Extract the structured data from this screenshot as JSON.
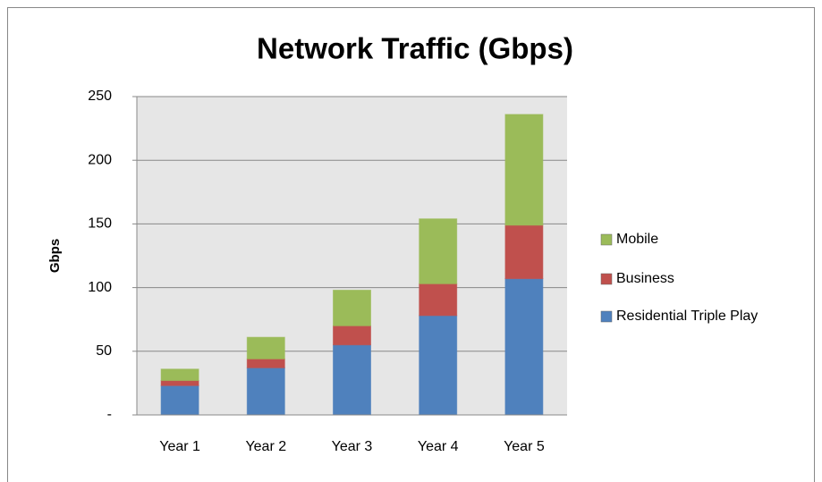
{
  "chart_data": {
    "type": "stacked_bar",
    "title": "Network Traffic (Gbps)",
    "y_label": "Gbps",
    "categories": [
      "Year 1",
      "Year 2",
      "Year 3",
      "Year 4",
      "Year 5"
    ],
    "series": [
      {
        "name": "Residential Triple Play",
        "color": "#4f81bd",
        "values": [
          23,
          37,
          55,
          78,
          107
        ]
      },
      {
        "name": "Business",
        "color": "#c0504d",
        "values": [
          4,
          7,
          15,
          25,
          42
        ]
      },
      {
        "name": "Mobile",
        "color": "#9bbb59",
        "values": [
          9,
          17,
          28,
          51,
          87
        ]
      }
    ],
    "ylim": [
      0,
      250
    ],
    "yticks": [
      {
        "value": 0,
        "label": "-"
      },
      50,
      100,
      150,
      200,
      250
    ],
    "grid": true,
    "legend": "right"
  }
}
